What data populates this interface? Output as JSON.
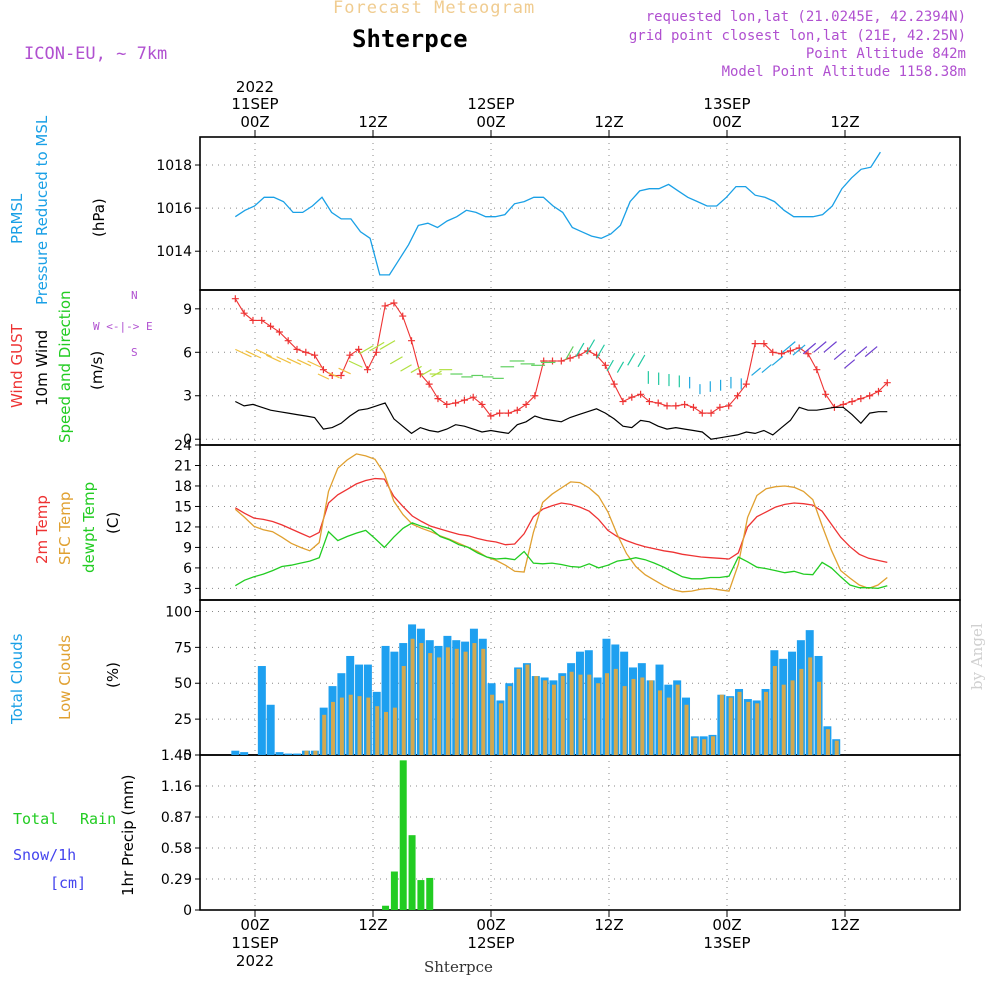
{
  "header": {
    "top_faded_title": "Forecast Meteogram",
    "station": "Shterpce",
    "model": "ICON-EU, ~ 7km",
    "requested": "requested lon,lat (21.0245E, 42.2394N)",
    "grid_point": "grid point closest lon,lat (21E, 42.25N)",
    "point_altitude": "Point Altitude 842m",
    "model_altitude": "Model Point Altitude 1158.38m",
    "watermark": "by Angel",
    "bottom_station": "Shterpce"
  },
  "colors": {
    "pressure": "#1aa0e6",
    "gust": "#ee3333",
    "wind": "#000000",
    "temp": "#ee3333",
    "sfc_temp": "#e0a030",
    "dewpt": "#22cc22",
    "total_clouds": "#1ea0f0",
    "low_clouds": "#d2a850",
    "rain": "#22cc22",
    "snow": "#4444ee",
    "meta": "#b050d0"
  },
  "time_axis": {
    "top": [
      {
        "line1": "2022",
        "line2": "11SEP",
        "line3": "00Z"
      },
      {
        "line1": "",
        "line2": "",
        "line3": "12Z"
      },
      {
        "line1": "",
        "line2": "12SEP",
        "line3": "00Z"
      },
      {
        "line1": "",
        "line2": "",
        "line3": "12Z"
      },
      {
        "line1": "",
        "line2": "13SEP",
        "line3": "00Z"
      },
      {
        "line1": "",
        "line2": "",
        "line3": "12Z"
      }
    ],
    "bottom": [
      {
        "line1": "00Z",
        "line2": "11SEP",
        "line3": "2022"
      },
      {
        "line1": "12Z",
        "line2": "",
        "line3": ""
      },
      {
        "line1": "00Z",
        "line2": "12SEP",
        "line3": ""
      },
      {
        "line1": "12Z",
        "line2": "",
        "line3": ""
      },
      {
        "line1": "00Z",
        "line2": "13SEP",
        "line3": ""
      },
      {
        "line1": "12Z",
        "line2": "",
        "line3": ""
      }
    ]
  },
  "panel_labels": {
    "pressure": {
      "l1": "PRMSL",
      "l2": "Pressure Reduced to MSL",
      "unit": "(hPa)"
    },
    "wind": {
      "l1": "Wind GUST",
      "l2": "10m Wind",
      "l3": "Speed and Direction",
      "unit": "(m/s)",
      "compass_n": "N",
      "compass_s": "S",
      "compass_we": "W <-|-> E"
    },
    "temp": {
      "l1": "2m Temp",
      "l2": "SFC Temp",
      "l3": "dewpt Temp",
      "unit": "(C)"
    },
    "cloud": {
      "l1": "Total Clouds",
      "l2": "Low Clouds",
      "unit": "(%)"
    },
    "precip": {
      "l1": "Total",
      "l1b": "Rain",
      "l2": "Snow/1h",
      "l3": "[cm]",
      "unit": "1hr Precip (mm)"
    }
  },
  "chart_data": [
    {
      "type": "line",
      "title": "PRMSL Pressure Reduced to MSL",
      "ylabel": "(hPa)",
      "x_hours": [
        -2,
        -1,
        0,
        1,
        2,
        3,
        4,
        5,
        6,
        7,
        8,
        9,
        10,
        11,
        12,
        13,
        14,
        15,
        16,
        17,
        18,
        19,
        20,
        21,
        22,
        23,
        24,
        25,
        26,
        27,
        28,
        29,
        30,
        31,
        32,
        33,
        34,
        35,
        36,
        37,
        38,
        39,
        40,
        41,
        42,
        43,
        44,
        45,
        46,
        47,
        48,
        49,
        50,
        51,
        52,
        53,
        54,
        55,
        56,
        57,
        58,
        59,
        60,
        61,
        62,
        63,
        64,
        65,
        66,
        67,
        68,
        69,
        70,
        71,
        72,
        73,
        74,
        75,
        76
      ],
      "series": [
        {
          "name": "PRMSL",
          "values": [
            1015.6,
            1015.9,
            1016.1,
            1016.5,
            1016.5,
            1016.3,
            1015.8,
            1015.8,
            1016.1,
            1016.5,
            1015.8,
            1015.5,
            1015.5,
            1014.9,
            1014.6,
            1012.9,
            1012.9,
            1013.6,
            1014.3,
            1015.2,
            1015.3,
            1015.1,
            1015.4,
            1015.6,
            1015.9,
            1015.8,
            1015.6,
            1015.6,
            1015.7,
            1016.2,
            1016.3,
            1016.5,
            1016.5,
            1016.1,
            1015.8,
            1015.1,
            1014.9,
            1014.7,
            1014.6,
            1014.8,
            1015.2,
            1016.3,
            1016.8,
            1016.9,
            1016.9,
            1017.1,
            1016.8,
            1016.5,
            1016.3,
            1016.1,
            1016.1,
            1016.5,
            1017.0,
            1017.0,
            1016.6,
            1016.5,
            1016.3,
            1015.9,
            1015.6,
            1015.6,
            1015.6,
            1015.7,
            1016.1,
            1016.9,
            1017.4,
            1017.8,
            1017.9,
            1018.6
          ]
        }
      ],
      "ylim": [
        1012.2,
        1019.3
      ],
      "yticks": [
        1014,
        1016,
        1018
      ]
    },
    {
      "type": "line",
      "title": "Wind GUST / 10m Wind Speed and Direction",
      "ylabel": "(m/s)",
      "series": [
        {
          "name": "Wind GUST",
          "values": [
            9.7,
            8.7,
            8.2,
            8.2,
            7.8,
            7.4,
            6.8,
            6.2,
            6.0,
            5.8,
            4.8,
            4.4,
            4.4,
            5.8,
            6.2,
            4.8,
            6.0,
            9.2,
            9.4,
            8.5,
            6.8,
            4.5,
            3.8,
            2.8,
            2.4,
            2.5,
            2.7,
            2.9,
            2.4,
            1.6,
            1.8,
            1.8,
            2.0,
            2.4,
            3.0,
            5.4,
            5.4,
            5.4,
            5.6,
            5.8,
            6.1,
            5.8,
            5.1,
            3.8,
            2.6,
            2.9,
            3.1,
            2.6,
            2.5,
            2.3,
            2.3,
            2.4,
            2.2,
            1.8,
            1.8,
            2.2,
            2.3,
            3.0,
            3.8,
            6.6,
            6.6,
            6.0,
            5.9,
            6.1,
            6.3,
            5.9,
            4.8,
            3.1,
            2.2,
            2.4,
            2.6,
            2.8,
            3.0,
            3.3,
            3.9
          ]
        },
        {
          "name": "10m Wind",
          "values": [
            2.6,
            2.3,
            2.4,
            2.2,
            2.0,
            1.9,
            1.8,
            1.7,
            1.6,
            1.5,
            0.7,
            0.8,
            1.1,
            1.6,
            2.0,
            2.1,
            2.3,
            2.5,
            1.4,
            0.9,
            0.4,
            0.8,
            0.6,
            0.5,
            0.7,
            1.0,
            0.9,
            0.7,
            0.5,
            0.6,
            0.5,
            0.4,
            1.0,
            1.2,
            1.6,
            1.4,
            1.3,
            1.2,
            1.5,
            1.7,
            1.9,
            2.1,
            1.8,
            1.4,
            0.9,
            0.8,
            1.3,
            1.2,
            0.9,
            0.7,
            0.8,
            0.7,
            0.6,
            0.5,
            0.0,
            0.1,
            0.2,
            0.3,
            0.5,
            0.4,
            0.6,
            0.3,
            0.8,
            1.3,
            2.2,
            2.0,
            2.0,
            2.1,
            2.2,
            2.2,
            1.7,
            1.1,
            1.8,
            1.9,
            1.9
          ]
        }
      ],
      "ylim": [
        -0.4,
        10.3
      ],
      "yticks": [
        0,
        3,
        6,
        9
      ]
    },
    {
      "type": "line",
      "title": "2m Temp / SFC Temp / dewpt Temp",
      "ylabel": "(C)",
      "series": [
        {
          "name": "2m Temp",
          "values": [
            14.8,
            14.0,
            13.3,
            13.1,
            12.8,
            12.3,
            11.7,
            11.1,
            10.5,
            11.2,
            15.5,
            16.7,
            17.5,
            18.3,
            18.8,
            19.1,
            19.0,
            16.5,
            15.0,
            13.6,
            12.8,
            12.1,
            11.7,
            11.3,
            10.9,
            10.7,
            10.3,
            10.0,
            9.8,
            9.4,
            9.5,
            11.0,
            13.5,
            14.6,
            15.1,
            15.5,
            15.3,
            14.9,
            14.3,
            13.1,
            11.5,
            10.6,
            10.0,
            9.5,
            9.1,
            8.8,
            8.5,
            8.3,
            8.0,
            7.8,
            7.6,
            7.5,
            7.4,
            7.3,
            8.2,
            12.0,
            13.5,
            14.2,
            14.9,
            15.3,
            15.5,
            15.4,
            15.2,
            14.3,
            12.4,
            10.5,
            9.1,
            8.0,
            7.4,
            7.1,
            6.8
          ]
        },
        {
          "name": "SFC Temp",
          "values": [
            14.6,
            13.4,
            12.1,
            11.6,
            11.3,
            10.5,
            9.6,
            9.0,
            8.5,
            9.7,
            17.2,
            20.6,
            21.8,
            22.7,
            22.4,
            21.9,
            19.8,
            15.8,
            13.8,
            12.4,
            11.8,
            11.3,
            10.7,
            10.2,
            9.6,
            9.0,
            8.4,
            7.6,
            7.1,
            6.4,
            5.5,
            5.4,
            11.2,
            15.6,
            16.8,
            17.7,
            18.6,
            18.5,
            17.7,
            16.5,
            14.2,
            10.9,
            8.1,
            6.2,
            5.0,
            4.2,
            3.4,
            2.8,
            2.5,
            2.6,
            2.9,
            3.0,
            2.8,
            2.6,
            6.5,
            13.4,
            16.6,
            17.6,
            17.9,
            18.0,
            17.8,
            17.2,
            16.0,
            12.2,
            8.6,
            5.6,
            4.5,
            3.5,
            3.0,
            3.5,
            4.6
          ]
        },
        {
          "name": "dewpt Temp",
          "values": [
            3.4,
            4.2,
            4.7,
            5.1,
            5.6,
            6.2,
            6.4,
            6.7,
            7.0,
            7.5,
            11.3,
            10.0,
            10.6,
            11.1,
            11.5,
            10.3,
            9.0,
            10.5,
            11.8,
            12.6,
            12.1,
            11.7,
            10.6,
            10.1,
            9.4,
            9.0,
            8.2,
            7.6,
            7.3,
            7.4,
            7.2,
            8.4,
            6.7,
            6.6,
            6.7,
            6.5,
            6.2,
            6.1,
            6.6,
            6.0,
            6.4,
            7.0,
            7.2,
            7.5,
            7.2,
            6.7,
            6.1,
            5.4,
            4.7,
            4.4,
            4.4,
            4.6,
            4.6,
            4.8,
            7.6,
            6.9,
            6.1,
            5.9,
            5.6,
            5.3,
            5.5,
            5.1,
            5.0,
            6.8,
            6.0,
            4.7,
            3.5,
            3.1,
            3.1,
            3.0,
            3.4
          ]
        }
      ],
      "ylim": [
        1.3,
        24.0
      ],
      "yticks": [
        3,
        6,
        9,
        12,
        15,
        18,
        21,
        24
      ]
    },
    {
      "type": "bar",
      "title": "Total Clouds / Low Clouds",
      "ylabel": "(%)",
      "series": [
        {
          "name": "Total Clouds",
          "values": [
            3,
            2,
            0,
            62,
            35,
            2,
            1,
            1,
            3,
            3,
            33,
            48,
            57,
            69,
            63,
            63,
            44,
            76,
            72,
            78,
            91,
            88,
            80,
            76,
            83,
            80,
            79,
            88,
            81,
            50,
            38,
            50,
            61,
            64,
            55,
            54,
            52,
            57,
            64,
            72,
            73,
            54,
            81,
            77,
            72,
            61,
            64,
            52,
            63,
            49,
            52,
            40,
            13,
            13,
            14,
            42,
            41,
            46,
            39,
            38,
            46,
            73,
            67,
            72,
            80,
            87,
            69,
            20,
            11,
            0,
            0,
            0,
            0,
            0,
            0
          ]
        },
        {
          "name": "Low Clouds",
          "values": [
            0,
            0,
            0,
            0,
            0,
            0,
            0,
            0,
            3,
            3,
            28,
            37,
            40,
            42,
            41,
            40,
            34,
            30,
            33,
            62,
            81,
            78,
            71,
            68,
            75,
            74,
            72,
            78,
            74,
            42,
            36,
            48,
            60,
            63,
            55,
            52,
            49,
            55,
            58,
            56,
            56,
            50,
            57,
            60,
            48,
            53,
            54,
            52,
            45,
            40,
            49,
            35,
            12,
            11,
            13,
            42,
            40,
            44,
            37,
            36,
            44,
            62,
            49,
            52,
            60,
            68,
            51,
            18,
            10,
            0,
            0,
            0,
            0,
            0,
            0
          ]
        }
      ],
      "ylim": [
        0,
        108
      ],
      "yticks": [
        0,
        25,
        50,
        75,
        100
      ]
    },
    {
      "type": "bar",
      "title": "1hr Precip",
      "ylabel": "1hr Precip (mm)",
      "series": [
        {
          "name": "Total Rain",
          "values": [
            0,
            0,
            0,
            0,
            0,
            0,
            0,
            0,
            0,
            0,
            0,
            0,
            0,
            0,
            0,
            0,
            0,
            0.04,
            0.36,
            1.4,
            0.7,
            0.28,
            0.3,
            0,
            0,
            0,
            0,
            0,
            0,
            0,
            0,
            0,
            0,
            0,
            0,
            0,
            0,
            0,
            0,
            0,
            0,
            0,
            0,
            0,
            0,
            0,
            0,
            0,
            0,
            0,
            0,
            0,
            0,
            0,
            0,
            0,
            0,
            0,
            0,
            0,
            0,
            0,
            0,
            0,
            0,
            0,
            0,
            0,
            0,
            0,
            0,
            0,
            0,
            0,
            0
          ]
        },
        {
          "name": "Snow/1h",
          "values": [
            0,
            0,
            0,
            0,
            0,
            0,
            0,
            0,
            0,
            0,
            0,
            0,
            0,
            0,
            0,
            0,
            0,
            0,
            0,
            0,
            0,
            0,
            0,
            0,
            0,
            0,
            0,
            0,
            0,
            0,
            0,
            0,
            0,
            0,
            0,
            0,
            0,
            0,
            0,
            0,
            0,
            0,
            0,
            0,
            0,
            0,
            0,
            0,
            0,
            0,
            0,
            0,
            0,
            0,
            0,
            0,
            0,
            0,
            0,
            0,
            0,
            0,
            0,
            0,
            0,
            0,
            0,
            0,
            0,
            0,
            0,
            0,
            0,
            0,
            0
          ]
        }
      ],
      "ylim": [
        0,
        1.45
      ],
      "yticks": [
        "0",
        "0.29",
        "0.58",
        "0.87",
        "1.16",
        "1.45"
      ]
    }
  ]
}
